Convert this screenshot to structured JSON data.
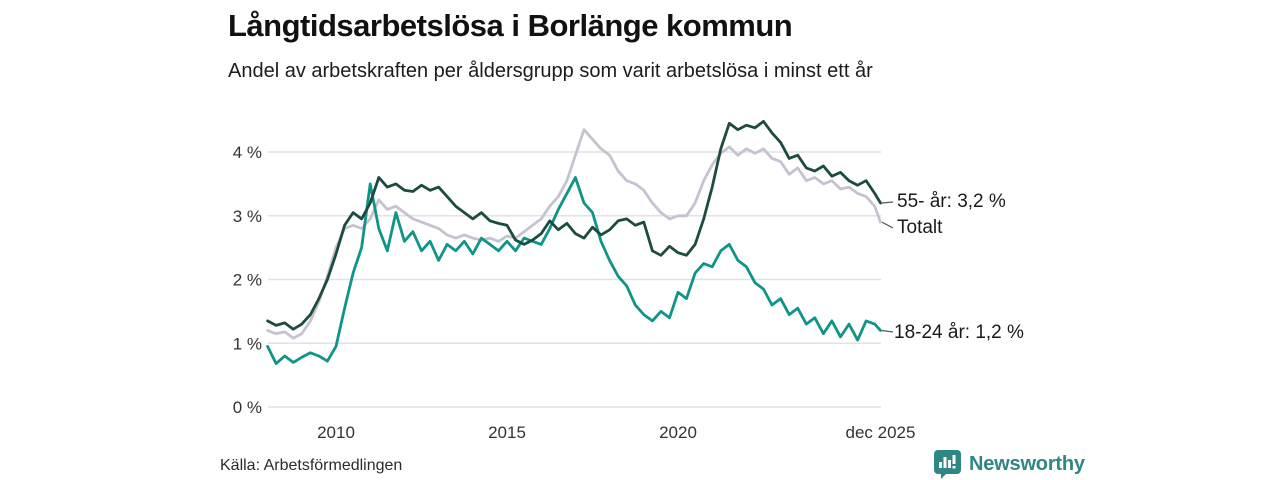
{
  "header": {
    "title": "Långtidsarbetslösa i Borlänge kommun",
    "subtitle": "Andel av arbetskraften per åldersgrupp som varit arbetslösa i minst ett år"
  },
  "footer": {
    "source": "Källa: Arbetsförmedlingen",
    "brand": "Newsworthy",
    "brand_color": "#2f8783"
  },
  "colors": {
    "grid": "#e2e2e2",
    "axis_text": "#333333",
    "label_text": "#1a1a1a",
    "connector": "#555555"
  },
  "chart_data": {
    "type": "line",
    "title": "Långtidsarbetslösa i Borlänge kommun",
    "subtitle": "Andel av arbetskraften per åldersgrupp som varit arbetslösa i minst ett år",
    "grid": true,
    "legend_position": "right-end-labels",
    "xlim": [
      2008,
      2025.92
    ],
    "ylim": [
      0,
      4.6
    ],
    "x_ticks": [
      {
        "t": 2010,
        "label": "2010"
      },
      {
        "t": 2015,
        "label": "2015"
      },
      {
        "t": 2020,
        "label": "2020"
      },
      {
        "t": 2025.92,
        "label": "dec 2025"
      }
    ],
    "y_ticks": [
      {
        "v": 0,
        "label": "0 %"
      },
      {
        "v": 1,
        "label": "1 %"
      },
      {
        "v": 2,
        "label": "2 %"
      },
      {
        "v": 3,
        "label": "3 %"
      },
      {
        "v": 4,
        "label": "4 %"
      }
    ],
    "x": [
      2008,
      2008.25,
      2008.5,
      2008.75,
      2009,
      2009.25,
      2009.5,
      2009.75,
      2010,
      2010.25,
      2010.5,
      2010.75,
      2011,
      2011.25,
      2011.5,
      2011.75,
      2012,
      2012.25,
      2012.5,
      2012.75,
      2013,
      2013.25,
      2013.5,
      2013.75,
      2014,
      2014.25,
      2014.5,
      2014.75,
      2015,
      2015.25,
      2015.5,
      2015.75,
      2016,
      2016.25,
      2016.5,
      2016.75,
      2017,
      2017.25,
      2017.5,
      2017.75,
      2018,
      2018.25,
      2018.5,
      2018.75,
      2019,
      2019.25,
      2019.5,
      2019.75,
      2020,
      2020.25,
      2020.5,
      2020.75,
      2021,
      2021.25,
      2021.5,
      2021.75,
      2022,
      2022.25,
      2022.5,
      2022.75,
      2023,
      2023.25,
      2023.5,
      2023.75,
      2024,
      2024.25,
      2024.5,
      2024.75,
      2025,
      2025.25,
      2025.5,
      2025.75,
      2025.92
    ],
    "series": [
      {
        "name": "Totalt",
        "color": "#c5c3d1",
        "end_label": "Totalt",
        "end_value": 2.9,
        "values": [
          1.2,
          1.15,
          1.18,
          1.08,
          1.15,
          1.35,
          1.65,
          2.05,
          2.5,
          2.8,
          2.85,
          2.8,
          2.95,
          3.25,
          3.1,
          3.15,
          3.05,
          2.95,
          2.9,
          2.85,
          2.8,
          2.7,
          2.65,
          2.7,
          2.65,
          2.62,
          2.65,
          2.6,
          2.68,
          2.65,
          2.75,
          2.85,
          2.95,
          3.15,
          3.3,
          3.55,
          3.95,
          4.35,
          4.2,
          4.05,
          3.95,
          3.7,
          3.55,
          3.5,
          3.4,
          3.2,
          3.05,
          2.95,
          3.0,
          3.0,
          3.2,
          3.55,
          3.8,
          3.98,
          4.08,
          3.95,
          4.05,
          3.98,
          4.05,
          3.9,
          3.85,
          3.65,
          3.75,
          3.55,
          3.6,
          3.5,
          3.55,
          3.42,
          3.45,
          3.35,
          3.3,
          3.15,
          2.9
        ]
      },
      {
        "name": "18-24 år",
        "color": "#0f9587",
        "end_label": "18-24 år: 1,2 %",
        "end_value": 1.2,
        "values": [
          0.95,
          0.68,
          0.8,
          0.7,
          0.78,
          0.85,
          0.8,
          0.72,
          0.95,
          1.55,
          2.1,
          2.5,
          3.5,
          2.8,
          2.45,
          3.05,
          2.6,
          2.75,
          2.45,
          2.6,
          2.3,
          2.55,
          2.45,
          2.6,
          2.4,
          2.65,
          2.55,
          2.45,
          2.6,
          2.45,
          2.65,
          2.6,
          2.55,
          2.8,
          3.1,
          3.35,
          3.6,
          3.2,
          3.05,
          2.6,
          2.3,
          2.05,
          1.9,
          1.6,
          1.45,
          1.35,
          1.5,
          1.4,
          1.8,
          1.7,
          2.1,
          2.25,
          2.2,
          2.45,
          2.55,
          2.3,
          2.2,
          1.95,
          1.85,
          1.6,
          1.7,
          1.45,
          1.55,
          1.3,
          1.4,
          1.15,
          1.35,
          1.1,
          1.3,
          1.05,
          1.35,
          1.3,
          1.2
        ]
      },
      {
        "name": "55- år",
        "color": "#1e4b3f",
        "end_label": "55- år: 3,2 %",
        "end_value": 3.2,
        "values": [
          1.35,
          1.28,
          1.32,
          1.22,
          1.3,
          1.45,
          1.7,
          2.0,
          2.4,
          2.85,
          3.05,
          2.95,
          3.2,
          3.6,
          3.45,
          3.5,
          3.4,
          3.38,
          3.48,
          3.4,
          3.45,
          3.3,
          3.15,
          3.05,
          2.95,
          3.05,
          2.92,
          2.88,
          2.85,
          2.62,
          2.55,
          2.62,
          2.72,
          2.92,
          2.78,
          2.88,
          2.72,
          2.65,
          2.82,
          2.7,
          2.78,
          2.92,
          2.95,
          2.85,
          2.9,
          2.45,
          2.38,
          2.52,
          2.42,
          2.38,
          2.55,
          2.95,
          3.45,
          4.05,
          4.45,
          4.35,
          4.42,
          4.38,
          4.48,
          4.3,
          4.15,
          3.9,
          3.95,
          3.75,
          3.7,
          3.78,
          3.62,
          3.68,
          3.55,
          3.48,
          3.55,
          3.35,
          3.2
        ]
      }
    ]
  }
}
